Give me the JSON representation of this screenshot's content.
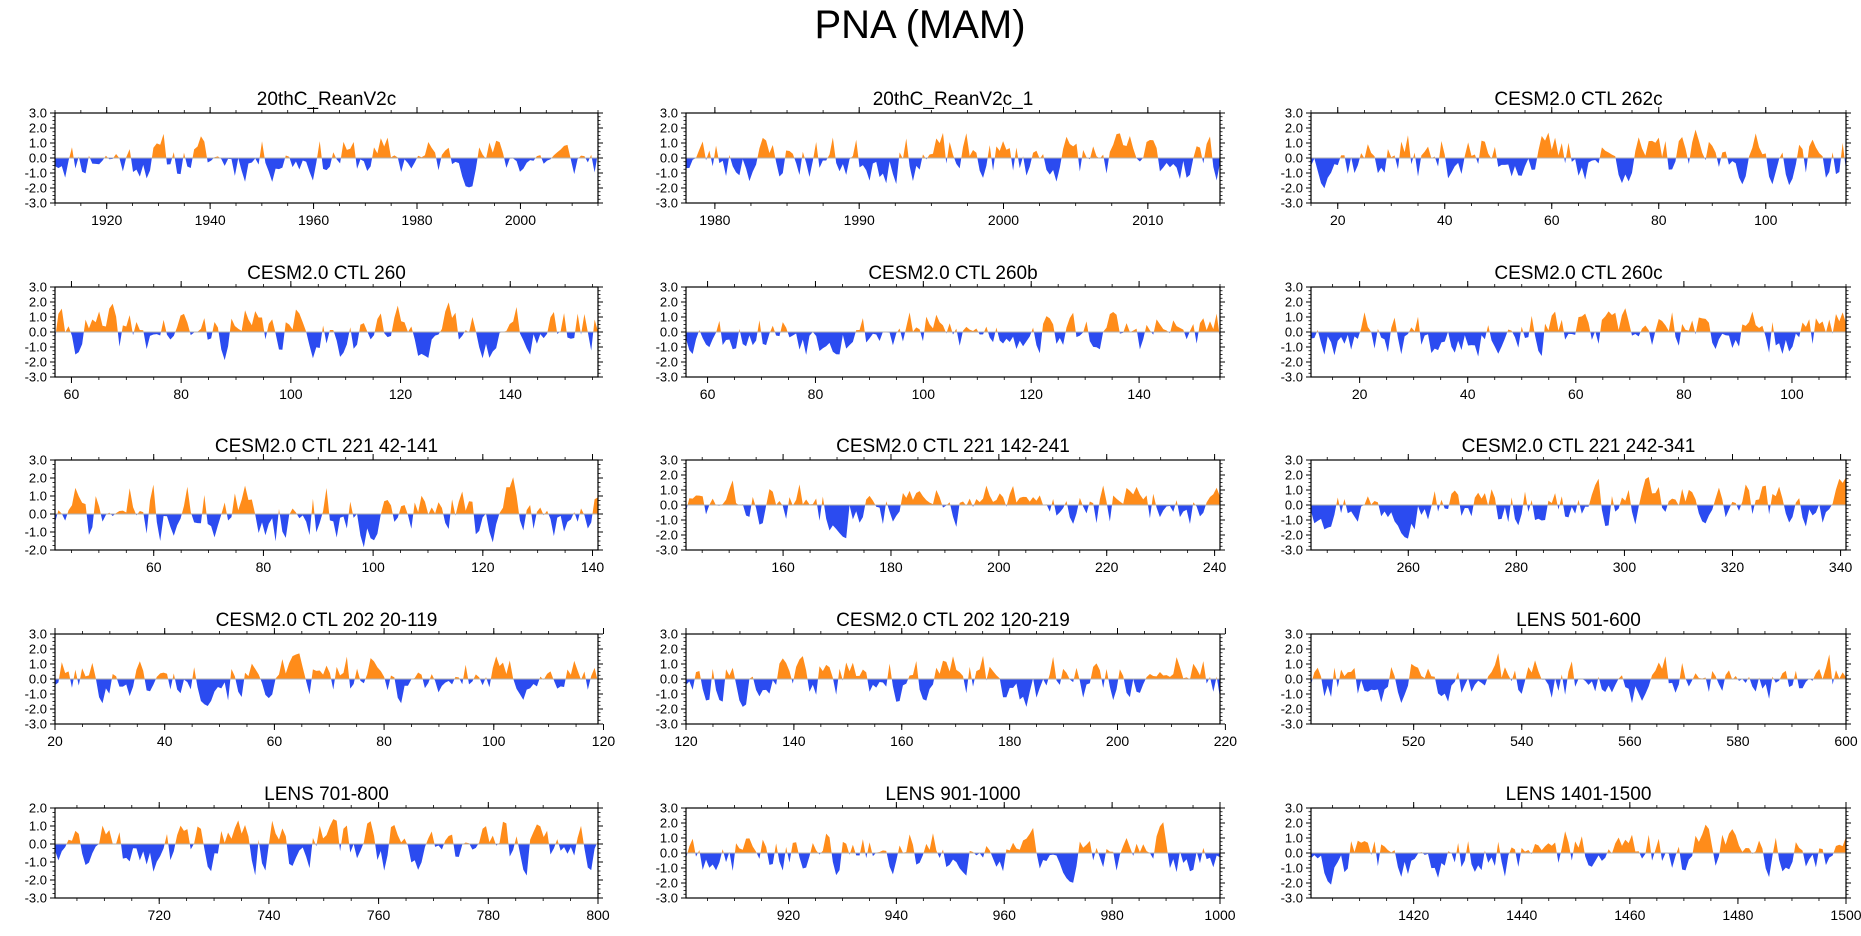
{
  "title": "PNA (MAM)",
  "colors": {
    "positive": "#ff8c1a",
    "negative": "#2b4bf0",
    "frame": "#000000",
    "zero_line": "#b0b0b0"
  },
  "chart_data": [
    {
      "type": "area",
      "title": "20thC_ReanV2c",
      "x_range": [
        1910,
        2015
      ],
      "xticks": [
        1920,
        1940,
        1960,
        1980,
        2000
      ],
      "ylim": [
        -3,
        3
      ],
      "yticks": [
        "3.0",
        "2.0",
        "1.0",
        "0.0",
        "-1.0",
        "-2.0",
        "-3.0"
      ],
      "seed": 11,
      "amp": 1.1,
      "sharp": 1.4
    },
    {
      "type": "area",
      "title": "20thC_ReanV2c_1",
      "x_range": [
        1978,
        2015
      ],
      "xticks": [
        1980,
        1990,
        2000,
        2010
      ],
      "ylim": [
        -3,
        3
      ],
      "yticks": [
        "3.0",
        "2.0",
        "1.0",
        "0.0",
        "-1.0",
        "-2.0",
        "-3.0"
      ],
      "seed": 23,
      "amp": 1.1,
      "sharp": 1.0
    },
    {
      "type": "area",
      "title": "CESM2.0 CTL 262c",
      "x_range": [
        15,
        115
      ],
      "xticks": [
        20,
        40,
        60,
        80,
        100
      ],
      "ylim": [
        -3,
        3
      ],
      "yticks": [
        "3.0",
        "2.0",
        "1.0",
        "0.0",
        "-1.0",
        "-2.0",
        "-3.0"
      ],
      "seed": 37,
      "amp": 1.2,
      "sharp": 1.5
    },
    {
      "type": "area",
      "title": "CESM2.0 CTL 260",
      "x_range": [
        57,
        156
      ],
      "xticks": [
        60,
        80,
        100,
        120,
        140
      ],
      "ylim": [
        -3,
        3
      ],
      "yticks": [
        "3.0",
        "2.0",
        "1.0",
        "0.0",
        "-1.0",
        "-2.0",
        "-3.0"
      ],
      "seed": 41,
      "amp": 1.2,
      "sharp": 1.5
    },
    {
      "type": "area",
      "title": "CESM2.0 CTL 260b",
      "x_range": [
        56,
        155
      ],
      "xticks": [
        60,
        80,
        100,
        120,
        140
      ],
      "ylim": [
        -3,
        3
      ],
      "yticks": [
        "3.0",
        "2.0",
        "1.0",
        "0.0",
        "-1.0",
        "-2.0",
        "-3.0"
      ],
      "seed": 53,
      "amp": 1.1,
      "sharp": 1.5
    },
    {
      "type": "area",
      "title": "CESM2.0 CTL 260c",
      "x_range": [
        11,
        110
      ],
      "xticks": [
        20,
        40,
        60,
        80,
        100
      ],
      "ylim": [
        -3,
        3
      ],
      "yticks": [
        "3.0",
        "2.0",
        "1.0",
        "0.0",
        "-1.0",
        "-2.0",
        "-3.0"
      ],
      "seed": 67,
      "amp": 1.1,
      "sharp": 1.5
    },
    {
      "type": "area",
      "title": "CESM2.0 CTL 221 42-141",
      "x_range": [
        42,
        141
      ],
      "xticks": [
        60,
        80,
        100,
        120,
        140
      ],
      "ylim": [
        -2,
        3
      ],
      "yticks": [
        "3.0",
        "2.0",
        "1.0",
        "0.0",
        "-1.0",
        "-2.0"
      ],
      "seed": 71,
      "amp": 1.2,
      "sharp": 1.5
    },
    {
      "type": "area",
      "title": "CESM2.0 CTL 221 142-241",
      "x_range": [
        142,
        241
      ],
      "xticks": [
        160,
        180,
        200,
        220,
        240
      ],
      "ylim": [
        -3,
        3
      ],
      "yticks": [
        "3.0",
        "2.0",
        "1.0",
        "0.0",
        "-1.0",
        "-2.0",
        "-3.0"
      ],
      "seed": 83,
      "amp": 1.1,
      "sharp": 1.5
    },
    {
      "type": "area",
      "title": "CESM2.0 CTL 221 242-341",
      "x_range": [
        242,
        341
      ],
      "xticks": [
        260,
        280,
        300,
        320,
        340
      ],
      "ylim": [
        -3,
        3
      ],
      "yticks": [
        "3.0",
        "2.0",
        "1.0",
        "0.0",
        "-1.0",
        "-2.0",
        "-3.0"
      ],
      "seed": 97,
      "amp": 1.1,
      "sharp": 1.5
    },
    {
      "type": "area",
      "title": "CESM2.0 CTL 202 20-119",
      "x_range": [
        20,
        119
      ],
      "xticks": [
        20,
        40,
        60,
        80,
        100,
        120
      ],
      "ylim": [
        -3,
        3
      ],
      "yticks": [
        "3.0",
        "2.0",
        "1.0",
        "0.0",
        "-1.0",
        "-2.0",
        "-3.0"
      ],
      "seed": 101,
      "amp": 1.1,
      "sharp": 1.5
    },
    {
      "type": "area",
      "title": "CESM2.0 CTL 202 120-219",
      "x_range": [
        120,
        219
      ],
      "xticks": [
        120,
        140,
        160,
        180,
        200,
        220
      ],
      "ylim": [
        -3,
        3
      ],
      "yticks": [
        "3.0",
        "2.0",
        "1.0",
        "0.0",
        "-1.0",
        "-2.0",
        "-3.0"
      ],
      "seed": 113,
      "amp": 1.1,
      "sharp": 1.5
    },
    {
      "type": "area",
      "title": "LENS 501-600",
      "x_range": [
        501,
        600
      ],
      "xticks": [
        520,
        540,
        560,
        580,
        600
      ],
      "ylim": [
        -3,
        3
      ],
      "yticks": [
        "3.0",
        "2.0",
        "1.0",
        "0.0",
        "-1.0",
        "-2.0",
        "-3.0"
      ],
      "seed": 127,
      "amp": 1.1,
      "sharp": 1.5
    },
    {
      "type": "area",
      "title": "LENS 701-800",
      "x_range": [
        701,
        800
      ],
      "xticks": [
        720,
        740,
        760,
        780,
        800
      ],
      "ylim": [
        -3,
        2
      ],
      "yticks": [
        "2.0",
        "1.0",
        "0.0",
        "-1.0",
        "-2.0",
        "-3.0"
      ],
      "seed": 131,
      "amp": 1.1,
      "sharp": 1.5
    },
    {
      "type": "area",
      "title": "LENS 901-1000",
      "x_range": [
        901,
        1000
      ],
      "xticks": [
        920,
        940,
        960,
        980,
        1000
      ],
      "ylim": [
        -3,
        3
      ],
      "yticks": [
        "3.0",
        "2.0",
        "1.0",
        "0.0",
        "-1.0",
        "-2.0",
        "-3.0"
      ],
      "seed": 149,
      "amp": 1.1,
      "sharp": 1.5
    },
    {
      "type": "area",
      "title": "LENS 1401-1500",
      "x_range": [
        1401,
        1500
      ],
      "xticks": [
        1420,
        1440,
        1460,
        1480,
        1500
      ],
      "ylim": [
        -3,
        3
      ],
      "yticks": [
        "3.0",
        "2.0",
        "1.0",
        "0.0",
        "-1.0",
        "-2.0",
        "-3.0"
      ],
      "seed": 157,
      "amp": 1.1,
      "sharp": 1.5
    }
  ]
}
